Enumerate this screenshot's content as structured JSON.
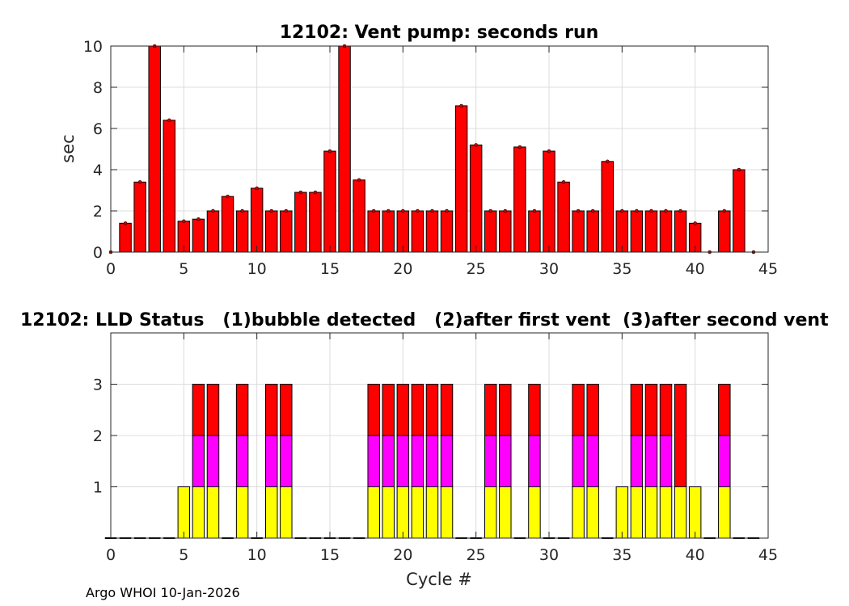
{
  "chart_data": [
    {
      "type": "bar",
      "title": "12102: Vent pump: seconds run",
      "xlabel": "",
      "ylabel": "sec",
      "xlim": [
        0,
        45
      ],
      "ylim": [
        0,
        10
      ],
      "xticks": [
        "0",
        "5",
        "10",
        "15",
        "20",
        "25",
        "30",
        "35",
        "40",
        "45"
      ],
      "yticks": [
        "0",
        "2",
        "4",
        "6",
        "8",
        "10"
      ],
      "grid": true,
      "bar_color": "#ff0000",
      "x": [
        0,
        1,
        2,
        3,
        4,
        5,
        6,
        7,
        8,
        9,
        10,
        11,
        12,
        13,
        14,
        15,
        16,
        17,
        18,
        19,
        20,
        21,
        22,
        23,
        24,
        25,
        26,
        27,
        28,
        29,
        30,
        31,
        32,
        33,
        34,
        35,
        36,
        37,
        38,
        39,
        40,
        41,
        42,
        43,
        44
      ],
      "values": [
        0,
        1.4,
        3.4,
        10,
        6.4,
        1.5,
        1.6,
        2,
        2.7,
        2,
        3.1,
        2,
        2,
        2.9,
        2.9,
        4.9,
        10,
        3.5,
        2,
        2,
        2,
        2,
        2,
        2,
        7.1,
        5.2,
        2,
        2,
        5.1,
        2,
        4.9,
        3.4,
        2,
        2,
        4.4,
        2,
        2,
        2,
        2,
        2,
        1.4,
        0,
        2,
        4,
        0
      ]
    },
    {
      "type": "bar",
      "stacked": true,
      "title": "12102: LLD Status   (1)bubble detected   (2)after first vent  (3)after second vent",
      "xlabel": "Cycle #",
      "ylabel": "",
      "xlim": [
        0,
        45
      ],
      "ylim": [
        0,
        4
      ],
      "xticks": [
        "0",
        "5",
        "10",
        "15",
        "20",
        "25",
        "30",
        "35",
        "40",
        "45"
      ],
      "yticks": [
        "1",
        "2",
        "3"
      ],
      "grid": true,
      "x": [
        0,
        1,
        2,
        3,
        4,
        5,
        6,
        7,
        8,
        9,
        10,
        11,
        12,
        13,
        14,
        15,
        16,
        17,
        18,
        19,
        20,
        21,
        22,
        23,
        24,
        25,
        26,
        27,
        28,
        29,
        30,
        31,
        32,
        33,
        34,
        35,
        36,
        37,
        38,
        39,
        40,
        41,
        42,
        43,
        44
      ],
      "series": [
        {
          "color": "#ffff00",
          "values": [
            0,
            0,
            0,
            0,
            0,
            1,
            1,
            1,
            0,
            1,
            0,
            1,
            1,
            0,
            0,
            0,
            0,
            0,
            1,
            1,
            1,
            1,
            1,
            1,
            0,
            0,
            1,
            1,
            0,
            1,
            0,
            0,
            1,
            1,
            0,
            1,
            1,
            1,
            1,
            1,
            1,
            0,
            1,
            0,
            0
          ]
        },
        {
          "color": "#ff00ff",
          "values": [
            0,
            0,
            0,
            0,
            0,
            0,
            1,
            1,
            0,
            1,
            0,
            1,
            1,
            0,
            0,
            0,
            0,
            0,
            1,
            1,
            1,
            1,
            1,
            1,
            0,
            0,
            1,
            1,
            0,
            1,
            0,
            0,
            1,
            1,
            0,
            0,
            1,
            1,
            1,
            0,
            0,
            0,
            1,
            0,
            0
          ]
        },
        {
          "color": "#ff0000",
          "values": [
            0,
            0,
            0,
            0,
            0,
            0,
            1,
            1,
            0,
            1,
            0,
            1,
            1,
            0,
            0,
            0,
            0,
            0,
            1,
            1,
            1,
            1,
            1,
            1,
            0,
            0,
            1,
            1,
            0,
            1,
            0,
            0,
            1,
            1,
            0,
            0,
            1,
            1,
            1,
            2,
            0,
            0,
            1,
            0,
            0
          ]
        }
      ]
    }
  ],
  "footer": "Argo WHOI 10-Jan-2026"
}
